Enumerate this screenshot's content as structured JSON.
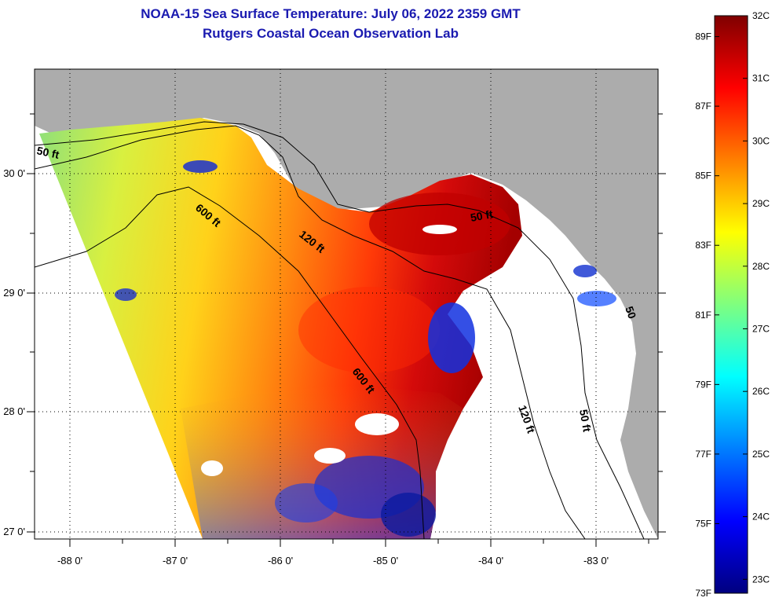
{
  "header": {
    "title_line1": "NOAA-15 Sea Surface Temperature:  July 06, 2022 2359 GMT",
    "title_line2": "Rutgers Coastal Ocean Observation Lab"
  },
  "map": {
    "lon_ticks": [
      "-88 0'",
      "-87 0'",
      "-86 0'",
      "-85 0'",
      "-84 0'",
      "-83 0'"
    ],
    "lat_ticks": [
      "30 0'",
      "29 0'",
      "28 0'",
      "27 0'"
    ],
    "contours": {
      "ft50_a": "50 ft",
      "ft600_a": "600 ft",
      "ft120_a": "120 ft",
      "ft50_b": "50 ft",
      "ft600_b": "600 ft",
      "ft120_b": "120 ft",
      "ft50_c": "50 ft",
      "ft50_d": "50"
    }
  },
  "colorbar": {
    "fahrenheit": [
      "89F",
      "87F",
      "85F",
      "83F",
      "81F",
      "79F",
      "77F",
      "75F",
      "73F"
    ],
    "celsius": [
      "32C",
      "31C",
      "30C",
      "29C",
      "28C",
      "27C",
      "26C",
      "25C",
      "24C",
      "23C"
    ],
    "colors": [
      "#00007f",
      "#0000ff",
      "#007fff",
      "#00ffff",
      "#7fff7f",
      "#ffff00",
      "#ff7f00",
      "#ff0000",
      "#7f0000"
    ]
  }
}
